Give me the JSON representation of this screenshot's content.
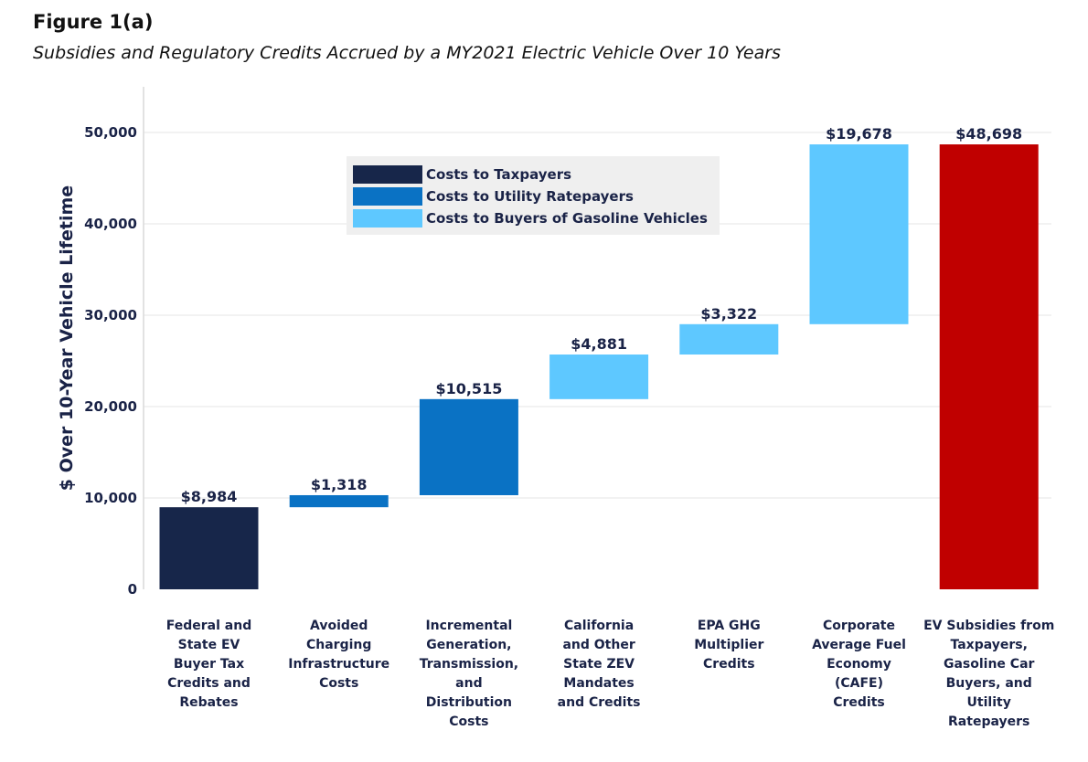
{
  "figure": {
    "label": "Figure 1(a)",
    "subtitle": "Subsidies and Regulatory Credits Accrued by a MY2021 Electric Vehicle Over 10 Years"
  },
  "chart_data": {
    "type": "bar",
    "subtype": "waterfall",
    "ylabel": "$ Over 10-Year Vehicle Lifetime",
    "xlabel": "",
    "ylim": [
      0,
      55000
    ],
    "yticks": [
      0,
      10000,
      20000,
      30000,
      40000,
      50000
    ],
    "ytick_labels": [
      "0",
      "10,000",
      "20,000",
      "30,000",
      "40,000",
      "50,000"
    ],
    "grid": true,
    "legend_position": "top-center",
    "legend": [
      {
        "label": "Costs to Taxpayers",
        "color": "#17264a"
      },
      {
        "label": "Costs to Utility Ratepayers",
        "color": "#0a72c4"
      },
      {
        "label": "Costs to Buyers of Gasoline Vehicles",
        "color": "#5ec8ff"
      }
    ],
    "bars": [
      {
        "category_lines": [
          "Federal and",
          "State EV",
          "Buyer Tax",
          "Credits and",
          "Rebates"
        ],
        "base": 0,
        "value": 8984,
        "label": "$8,984",
        "color": "#17264a"
      },
      {
        "category_lines": [
          "Avoided",
          "Charging",
          "Infrastructure",
          "Costs"
        ],
        "base": 8984,
        "value": 1318,
        "label": "$1,318",
        "color": "#0a72c4"
      },
      {
        "category_lines": [
          "Incremental",
          "Generation,",
          "Transmission,",
          "and",
          "Distribution",
          "Costs"
        ],
        "base": 10302,
        "value": 10515,
        "label": "$10,515",
        "color": "#0a72c4"
      },
      {
        "category_lines": [
          "California",
          "and Other",
          "State ZEV",
          "Mandates",
          "and Credits"
        ],
        "base": 20817,
        "value": 4881,
        "label": "$4,881",
        "color": "#5ec8ff"
      },
      {
        "category_lines": [
          "EPA GHG",
          "Multiplier",
          "Credits"
        ],
        "base": 25698,
        "value": 3322,
        "label": "$3,322",
        "color": "#5ec8ff"
      },
      {
        "category_lines": [
          "Corporate",
          "Average Fuel",
          "Economy",
          "(CAFE)",
          "Credits"
        ],
        "base": 29020,
        "value": 19678,
        "label": "$19,678",
        "color": "#5ec8ff"
      },
      {
        "category_lines": [
          "EV Subsidies from",
          "Taxpayers,",
          "Gasoline Car",
          "Buyers, and",
          "Utility",
          "Ratepayers"
        ],
        "base": 0,
        "value": 48698,
        "label": "$48,698",
        "color": "#c00000"
      }
    ]
  }
}
